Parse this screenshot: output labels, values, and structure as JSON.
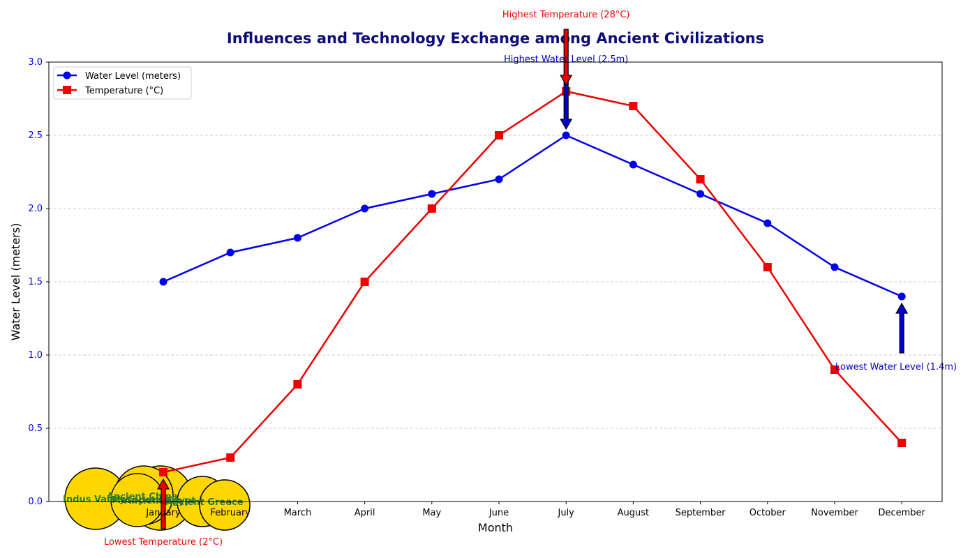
{
  "chart_data": {
    "type": "line",
    "title": "Influences and Technology Exchange among Ancient Civilizations",
    "xlabel": "Month",
    "ylabel": "Water Level (meters)",
    "categories": [
      "January",
      "February",
      "March",
      "April",
      "May",
      "June",
      "July",
      "August",
      "September",
      "October",
      "November",
      "December"
    ],
    "ylim": [
      0,
      3.0
    ],
    "yticks": [
      0.0,
      0.5,
      1.0,
      1.5,
      2.0,
      2.5,
      3.0
    ],
    "ytick_labels": [
      "0.0",
      "0.5",
      "1.0",
      "1.5",
      "2.0",
      "2.5",
      "3.0"
    ],
    "grid": "horizontal dashed",
    "legend_position": "top-left",
    "series": [
      {
        "name": "Water Level (meters)",
        "color": "#0000ee",
        "marker": "circle",
        "values": [
          1.5,
          1.7,
          1.8,
          2.0,
          2.1,
          2.2,
          2.5,
          2.3,
          2.1,
          1.9,
          1.6,
          1.4
        ]
      },
      {
        "name": "Temperature (°C)",
        "color": "#ee0000",
        "marker": "square",
        "values": [
          0.2,
          0.3,
          0.8,
          1.5,
          2.0,
          2.5,
          2.8,
          2.7,
          2.2,
          1.6,
          0.9,
          0.4
        ]
      }
    ],
    "annotations": [
      {
        "text": "Highest Temperature (28°C)",
        "color": "#ee0000",
        "month": "July",
        "value": 2.8,
        "arrow": "down"
      },
      {
        "text": "Highest Water Level (2.5m)",
        "color": "#0000cc",
        "month": "July",
        "value": 2.5,
        "arrow": "down"
      },
      {
        "text": "Lowest Water Level (1.4m)",
        "color": "#0000cc",
        "month": "December",
        "value": 1.4,
        "arrow": "up"
      },
      {
        "text": "Lowest Temperature (2°C)",
        "color": "#ee0000",
        "month": "January",
        "value": 0.2,
        "arrow": "up"
      }
    ],
    "civilizations": [
      {
        "name": "Indus Valley"
      },
      {
        "name": "Ancient China"
      },
      {
        "name": "Mesopotamia"
      },
      {
        "name": "Ancient Egypt"
      },
      {
        "name": "Ancient Greece"
      }
    ],
    "colors": {
      "title": "#0d0d7a",
      "y_ticks": "#0000ee",
      "grid": "#cccccc",
      "bubble_fill": "#ffd700",
      "civ_text": "#2e7d32"
    }
  }
}
